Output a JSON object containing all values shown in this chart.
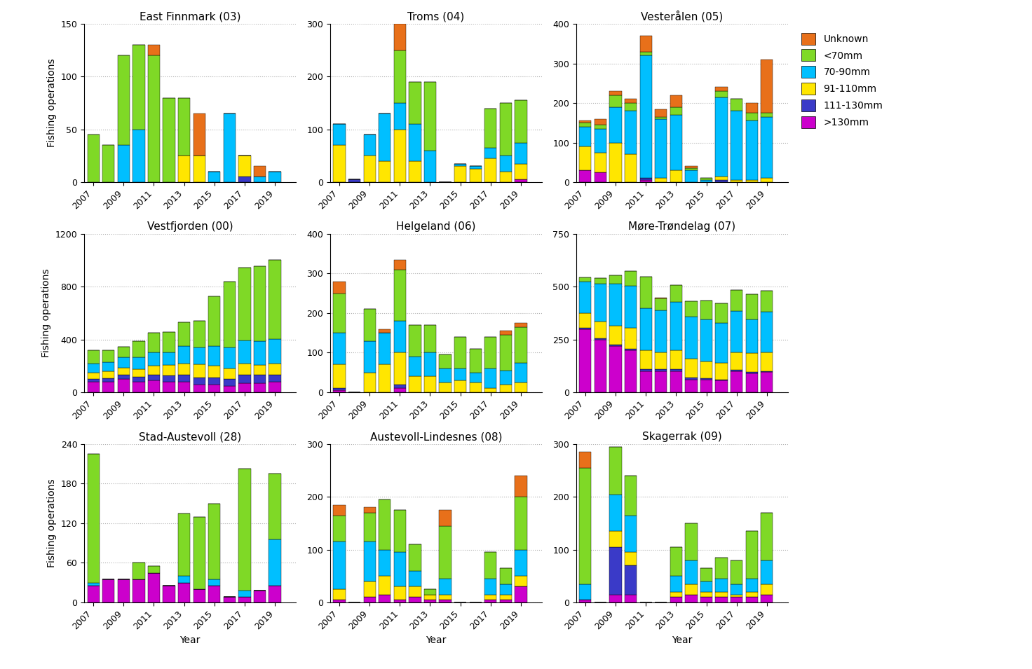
{
  "years": [
    2007,
    2008,
    2009,
    2010,
    2011,
    2012,
    2013,
    2014,
    2015,
    2016,
    2017,
    2018,
    2019
  ],
  "categories": [
    ">130mm",
    "111-130mm",
    "91-110mm",
    "70-90mm",
    "<70mm",
    "Unknown"
  ],
  "colors": [
    "#CC00CC",
    "#3A3AC8",
    "#FFE600",
    "#00BFFF",
    "#7FD926",
    "#E8701A"
  ],
  "subplots": [
    {
      "title": "East Finnmark (03)",
      "ylim": [
        0,
        150
      ],
      "yticks": [
        0,
        50,
        100,
        150
      ],
      "data": {
        ">130mm": [
          0,
          0,
          0,
          0,
          0,
          0,
          0,
          0,
          0,
          0,
          0,
          0,
          0
        ],
        "111-130mm": [
          0,
          0,
          0,
          0,
          0,
          0,
          0,
          0,
          0,
          0,
          5,
          0,
          0
        ],
        "91-110mm": [
          0,
          0,
          0,
          0,
          0,
          0,
          25,
          25,
          0,
          0,
          20,
          0,
          0
        ],
        "70-90mm": [
          0,
          0,
          35,
          50,
          0,
          0,
          0,
          0,
          10,
          65,
          0,
          5,
          10
        ],
        "<70mm": [
          45,
          35,
          85,
          80,
          120,
          80,
          55,
          0,
          0,
          0,
          0,
          0,
          0
        ],
        "Unknown": [
          0,
          0,
          0,
          0,
          10,
          0,
          0,
          40,
          0,
          0,
          0,
          10,
          0
        ]
      }
    },
    {
      "title": "Troms (04)",
      "ylim": [
        0,
        300
      ],
      "yticks": [
        0,
        100,
        200,
        300
      ],
      "data": {
        ">130mm": [
          0,
          0,
          0,
          0,
          0,
          0,
          0,
          0,
          0,
          0,
          0,
          0,
          5
        ],
        "111-130mm": [
          0,
          5,
          0,
          0,
          0,
          0,
          0,
          0,
          0,
          0,
          0,
          0,
          0
        ],
        "91-110mm": [
          70,
          0,
          50,
          40,
          100,
          40,
          0,
          0,
          30,
          25,
          45,
          20,
          30
        ],
        "70-90mm": [
          40,
          0,
          40,
          90,
          50,
          70,
          60,
          0,
          5,
          5,
          20,
          30,
          40
        ],
        "<70mm": [
          0,
          0,
          0,
          0,
          100,
          80,
          130,
          0,
          0,
          0,
          75,
          100,
          80
        ],
        "Unknown": [
          0,
          0,
          0,
          0,
          50,
          0,
          0,
          0,
          0,
          0,
          0,
          0,
          0
        ]
      }
    },
    {
      "title": "Vesterålen (05)",
      "ylim": [
        0,
        400
      ],
      "yticks": [
        0,
        100,
        200,
        300,
        400
      ],
      "data": {
        ">130mm": [
          30,
          25,
          0,
          0,
          5,
          0,
          0,
          0,
          0,
          0,
          0,
          0,
          0
        ],
        "111-130mm": [
          0,
          0,
          0,
          0,
          5,
          0,
          0,
          0,
          0,
          5,
          0,
          0,
          0
        ],
        "91-110mm": [
          60,
          50,
          100,
          70,
          0,
          10,
          30,
          0,
          0,
          10,
          5,
          5,
          10
        ],
        "70-90mm": [
          50,
          60,
          90,
          110,
          310,
          150,
          140,
          30,
          5,
          200,
          175,
          150,
          155
        ],
        "<70mm": [
          10,
          10,
          30,
          20,
          10,
          5,
          20,
          5,
          5,
          15,
          30,
          20,
          10
        ],
        "Unknown": [
          5,
          15,
          10,
          10,
          40,
          20,
          30,
          5,
          0,
          10,
          0,
          25,
          135
        ]
      }
    },
    {
      "title": "Vestfjorden (00)",
      "ylim": [
        0,
        1200
      ],
      "yticks": [
        0,
        400,
        800,
        1200
      ],
      "data": {
        ">130mm": [
          80,
          80,
          100,
          80,
          90,
          80,
          80,
          60,
          60,
          50,
          70,
          70,
          80
        ],
        "111-130mm": [
          20,
          25,
          30,
          35,
          40,
          45,
          50,
          50,
          50,
          50,
          60,
          60,
          55
        ],
        "91-110mm": [
          50,
          55,
          55,
          60,
          70,
          80,
          90,
          100,
          90,
          80,
          90,
          75,
          80
        ],
        "70-90mm": [
          70,
          70,
          80,
          90,
          100,
          100,
          130,
          130,
          150,
          160,
          175,
          180,
          190
        ],
        "<70mm": [
          100,
          90,
          80,
          120,
          150,
          150,
          180,
          200,
          380,
          500,
          550,
          570,
          600
        ],
        "Unknown": [
          0,
          0,
          0,
          0,
          0,
          0,
          0,
          0,
          0,
          0,
          0,
          0,
          0
        ]
      }
    },
    {
      "title": "Helgeland (06)",
      "ylim": [
        0,
        400
      ],
      "yticks": [
        0,
        100,
        200,
        300,
        400
      ],
      "data": {
        ">130mm": [
          5,
          0,
          0,
          0,
          10,
          0,
          0,
          0,
          0,
          0,
          0,
          0,
          0
        ],
        "111-130mm": [
          5,
          0,
          0,
          0,
          10,
          0,
          0,
          0,
          0,
          0,
          0,
          0,
          0
        ],
        "91-110mm": [
          60,
          0,
          50,
          70,
          80,
          40,
          40,
          25,
          30,
          25,
          10,
          20,
          25
        ],
        "70-90mm": [
          80,
          0,
          80,
          80,
          80,
          50,
          60,
          35,
          30,
          25,
          50,
          35,
          50
        ],
        "<70mm": [
          100,
          0,
          80,
          0,
          130,
          80,
          70,
          35,
          80,
          60,
          80,
          90,
          90
        ],
        "Unknown": [
          30,
          0,
          0,
          10,
          25,
          0,
          0,
          0,
          0,
          0,
          0,
          10,
          10
        ]
      }
    },
    {
      "title": "Møre-Trøndelag (07)",
      "ylim": [
        0,
        750
      ],
      "yticks": [
        0,
        250,
        500,
        750
      ],
      "data": {
        ">130mm": [
          300,
          250,
          220,
          200,
          100,
          100,
          100,
          60,
          60,
          55,
          100,
          90,
          95
        ],
        "111-130mm": [
          5,
          5,
          5,
          5,
          8,
          8,
          8,
          8,
          5,
          5,
          5,
          5,
          5
        ],
        "91-110mm": [
          70,
          80,
          90,
          100,
          90,
          80,
          90,
          90,
          80,
          80,
          85,
          90,
          90
        ],
        "70-90mm": [
          150,
          180,
          200,
          200,
          200,
          200,
          230,
          200,
          200,
          190,
          195,
          160,
          190
        ],
        "<70mm": [
          20,
          25,
          40,
          70,
          150,
          55,
          80,
          75,
          90,
          90,
          100,
          120,
          100
        ],
        "Unknown": [
          0,
          0,
          0,
          0,
          0,
          5,
          0,
          0,
          0,
          0,
          0,
          0,
          0
        ]
      }
    },
    {
      "title": "Stad-Austevoll (28)",
      "ylim": [
        0,
        240
      ],
      "yticks": [
        0,
        60,
        120,
        180,
        240
      ],
      "data": {
        ">130mm": [
          25,
          35,
          35,
          35,
          45,
          25,
          30,
          20,
          25,
          8,
          8,
          18,
          25
        ],
        "111-130mm": [
          0,
          0,
          0,
          0,
          0,
          0,
          0,
          0,
          0,
          0,
          0,
          0,
          0
        ],
        "91-110mm": [
          0,
          0,
          0,
          0,
          0,
          0,
          0,
          0,
          0,
          0,
          0,
          0,
          0
        ],
        "70-90mm": [
          5,
          0,
          0,
          0,
          0,
          0,
          10,
          0,
          10,
          0,
          10,
          0,
          70
        ],
        "<70mm": [
          195,
          0,
          0,
          25,
          10,
          0,
          95,
          110,
          115,
          0,
          185,
          0,
          100
        ],
        "Unknown": [
          0,
          0,
          0,
          0,
          0,
          0,
          0,
          0,
          0,
          0,
          0,
          0,
          0
        ]
      }
    },
    {
      "title": "Austevoll-Lindesnes (08)",
      "ylim": [
        0,
        300
      ],
      "yticks": [
        0,
        100,
        200,
        300
      ],
      "data": {
        ">130mm": [
          5,
          0,
          10,
          15,
          5,
          10,
          5,
          5,
          0,
          0,
          5,
          5,
          30
        ],
        "111-130mm": [
          0,
          0,
          0,
          0,
          0,
          0,
          0,
          0,
          0,
          0,
          0,
          0,
          0
        ],
        "91-110mm": [
          20,
          0,
          30,
          35,
          25,
          20,
          10,
          10,
          0,
          0,
          10,
          10,
          20
        ],
        "70-90mm": [
          90,
          0,
          75,
          50,
          65,
          30,
          0,
          30,
          0,
          0,
          30,
          20,
          50
        ],
        "<70mm": [
          50,
          0,
          55,
          95,
          80,
          50,
          10,
          100,
          0,
          0,
          50,
          30,
          100
        ],
        "Unknown": [
          20,
          0,
          10,
          0,
          0,
          0,
          0,
          30,
          0,
          0,
          0,
          0,
          40
        ]
      }
    },
    {
      "title": "Skagerrak (09)",
      "ylim": [
        0,
        300
      ],
      "yticks": [
        0,
        100,
        200,
        300
      ],
      "data": {
        ">130mm": [
          5,
          0,
          15,
          15,
          0,
          0,
          10,
          15,
          10,
          10,
          10,
          10,
          15
        ],
        "111-130mm": [
          0,
          0,
          90,
          55,
          0,
          0,
          0,
          0,
          0,
          0,
          0,
          0,
          0
        ],
        "91-110mm": [
          0,
          0,
          30,
          25,
          0,
          0,
          10,
          20,
          10,
          10,
          5,
          10,
          20
        ],
        "70-90mm": [
          30,
          0,
          70,
          70,
          0,
          0,
          30,
          45,
          20,
          25,
          20,
          25,
          45
        ],
        "<70mm": [
          220,
          0,
          90,
          75,
          0,
          0,
          55,
          70,
          25,
          40,
          45,
          90,
          90
        ],
        "Unknown": [
          30,
          0,
          0,
          0,
          0,
          0,
          0,
          0,
          0,
          0,
          0,
          0,
          0
        ]
      }
    }
  ],
  "legend_labels": [
    "Unknown",
    "<70mm",
    "70-90mm",
    "91-110mm",
    "111-130mm",
    ">130mm"
  ],
  "legend_colors": [
    "#E8701A",
    "#7FD926",
    "#00BFFF",
    "#FFE600",
    "#3A3AC8",
    "#CC00CC"
  ],
  "ylabel": "Fishing operations",
  "xlabel": "Year",
  "background_color": "#FFFFFF",
  "grid_color": "#AAAAAA"
}
